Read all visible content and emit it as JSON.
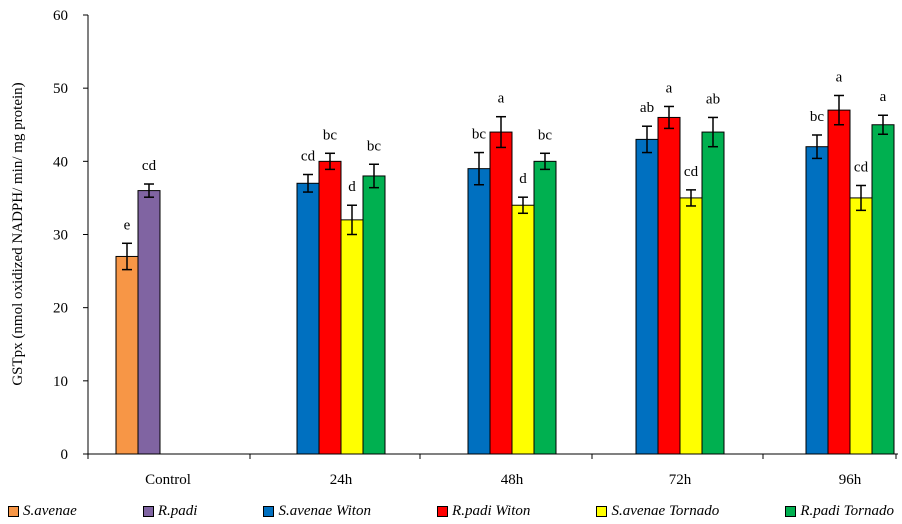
{
  "chart_data": {
    "type": "bar",
    "ylabel": "GSTpx (nmol oxidized NADPH/ min/ mg protein)",
    "xlabel": "",
    "ylim": [
      0,
      60
    ],
    "yticks": [
      0,
      10,
      20,
      30,
      40,
      50,
      60
    ],
    "grid": false,
    "legend_position": "bottom",
    "groups": [
      {
        "category": "Control",
        "bars": [
          {
            "series": "S.avenae",
            "value": 27,
            "error": 1.8,
            "label": "e"
          },
          {
            "series": "R.padi",
            "value": 36,
            "error": 0.9,
            "label": "cd"
          }
        ]
      },
      {
        "category": "24h",
        "bars": [
          {
            "series": "S.avenae Witon",
            "value": 37,
            "error": 1.2,
            "label": "cd"
          },
          {
            "series": "R.padi Witon",
            "value": 40,
            "error": 1.1,
            "label": "bc"
          },
          {
            "series": "S.avenae Tornado",
            "value": 32,
            "error": 2.0,
            "label": "d"
          },
          {
            "series": "R.padi Tornado",
            "value": 38,
            "error": 1.6,
            "label": "bc"
          }
        ]
      },
      {
        "category": "48h",
        "bars": [
          {
            "series": "S.avenae Witon",
            "value": 39,
            "error": 2.2,
            "label": "bc"
          },
          {
            "series": "R.padi Witon",
            "value": 44,
            "error": 2.1,
            "label": "a"
          },
          {
            "series": "S.avenae Tornado",
            "value": 34,
            "error": 1.1,
            "label": "d"
          },
          {
            "series": "R.padi Tornado",
            "value": 40,
            "error": 1.1,
            "label": "bc"
          }
        ]
      },
      {
        "category": "72h",
        "bars": [
          {
            "series": "S.avenae Witon",
            "value": 43,
            "error": 1.8,
            "label": "ab"
          },
          {
            "series": "R.padi Witon",
            "value": 46,
            "error": 1.5,
            "label": "a"
          },
          {
            "series": "S.avenae Tornado",
            "value": 35,
            "error": 1.1,
            "label": "cd"
          },
          {
            "series": "R.padi Tornado",
            "value": 44,
            "error": 2.0,
            "label": "ab"
          }
        ]
      },
      {
        "category": "96h",
        "bars": [
          {
            "series": "S.avenae Witon",
            "value": 42,
            "error": 1.6,
            "label": "bc"
          },
          {
            "series": "R.padi Witon",
            "value": 47,
            "error": 2.0,
            "label": "a"
          },
          {
            "series": "S.avenae Tornado",
            "value": 35,
            "error": 1.7,
            "label": "cd"
          },
          {
            "series": "R.padi Tornado",
            "value": 45,
            "error": 1.3,
            "label": "a"
          }
        ]
      }
    ],
    "legend": [
      {
        "name": "S.avenae",
        "color": "#f79646"
      },
      {
        "name": "R.padi",
        "color": "#8064a2"
      },
      {
        "name": "S.avenae Witon",
        "color": "#0070c0"
      },
      {
        "name": "R.padi Witon",
        "color": "#ff0000"
      },
      {
        "name": "S.avenae Tornado",
        "color": "#ffff00"
      },
      {
        "name": "R.padi Tornado",
        "color": "#00b050"
      }
    ]
  }
}
